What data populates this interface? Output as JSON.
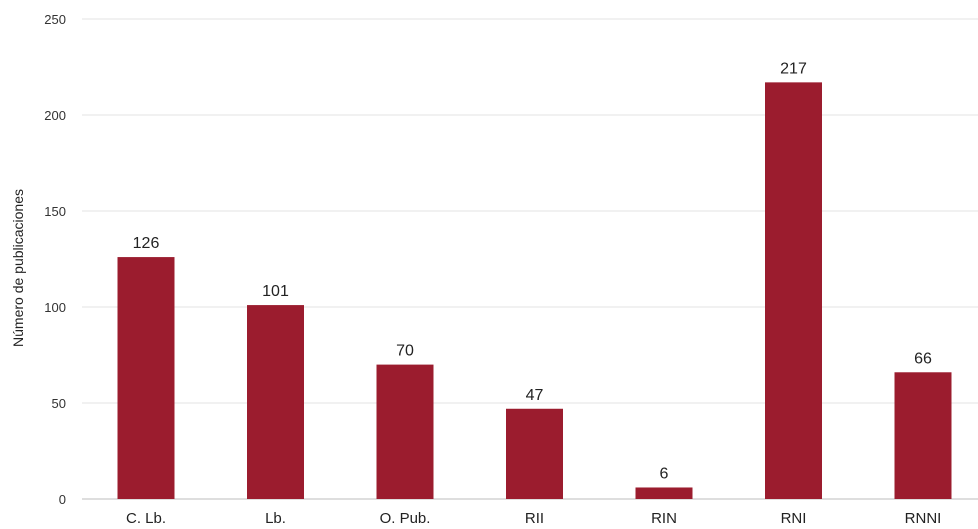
{
  "chart_data": {
    "type": "bar",
    "title": "",
    "xlabel": "",
    "ylabel": "Número de publicaciones",
    "categories": [
      "C. Lb.",
      "Lb.",
      "O. Pub.",
      "RII",
      "RIN",
      "RNI",
      "RNNI"
    ],
    "values": [
      126,
      101,
      70,
      47,
      6,
      217,
      66
    ],
    "ylim": [
      0,
      250
    ],
    "yticks": [
      0,
      50,
      100,
      150,
      200,
      250
    ],
    "grid": true,
    "bar_color": "#9b1c2e",
    "data_labels": true,
    "legend": "none"
  }
}
